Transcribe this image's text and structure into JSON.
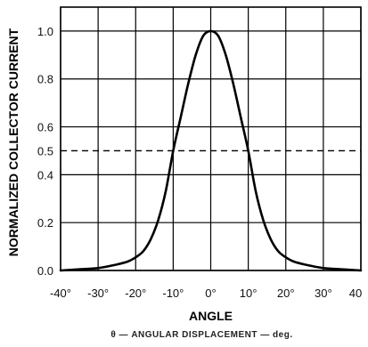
{
  "chart_data": {
    "type": "line",
    "xlabel": "ANGLE",
    "ylabel": "NORMALIZED COLLECTOR CURRENT",
    "caption": "θ — ANGULAR DISPLACEMENT — deg.",
    "xlim": [
      -40,
      40
    ],
    "ylim": [
      0,
      1.1
    ],
    "grid": true,
    "x_ticks": [
      -40,
      -30,
      -20,
      -10,
      0,
      10,
      20,
      30,
      40
    ],
    "x_tick_labels": [
      "-40°",
      "-30°",
      "-20°",
      "-10°",
      "0°",
      "10°",
      "20°",
      "30°",
      "40"
    ],
    "y_ticks": [
      0.0,
      0.2,
      0.4,
      0.5,
      0.6,
      0.8,
      1.0
    ],
    "y_tick_labels": [
      "0.0",
      "0.2",
      "0.4",
      "0.5",
      "0.6",
      "0.8",
      "1.0"
    ],
    "reference_lines": [
      {
        "orientation": "horizontal",
        "y": 0.5,
        "style": "dashed"
      }
    ],
    "series": [
      {
        "x": [
          -40,
          -35,
          -30,
          -25,
          -22,
          -20,
          -18,
          -16,
          -14,
          -12,
          -10,
          -8,
          -6,
          -4,
          -2,
          0,
          2,
          4,
          6,
          8,
          10,
          12,
          14,
          16,
          18,
          20,
          22,
          25,
          30,
          35,
          40
        ],
        "values": [
          0.0,
          0.005,
          0.01,
          0.025,
          0.038,
          0.055,
          0.08,
          0.13,
          0.21,
          0.33,
          0.5,
          0.64,
          0.78,
          0.9,
          0.98,
          1.0,
          0.98,
          0.9,
          0.78,
          0.64,
          0.5,
          0.33,
          0.21,
          0.13,
          0.08,
          0.055,
          0.038,
          0.025,
          0.01,
          0.005,
          0.0
        ],
        "color": "#000000"
      }
    ]
  }
}
